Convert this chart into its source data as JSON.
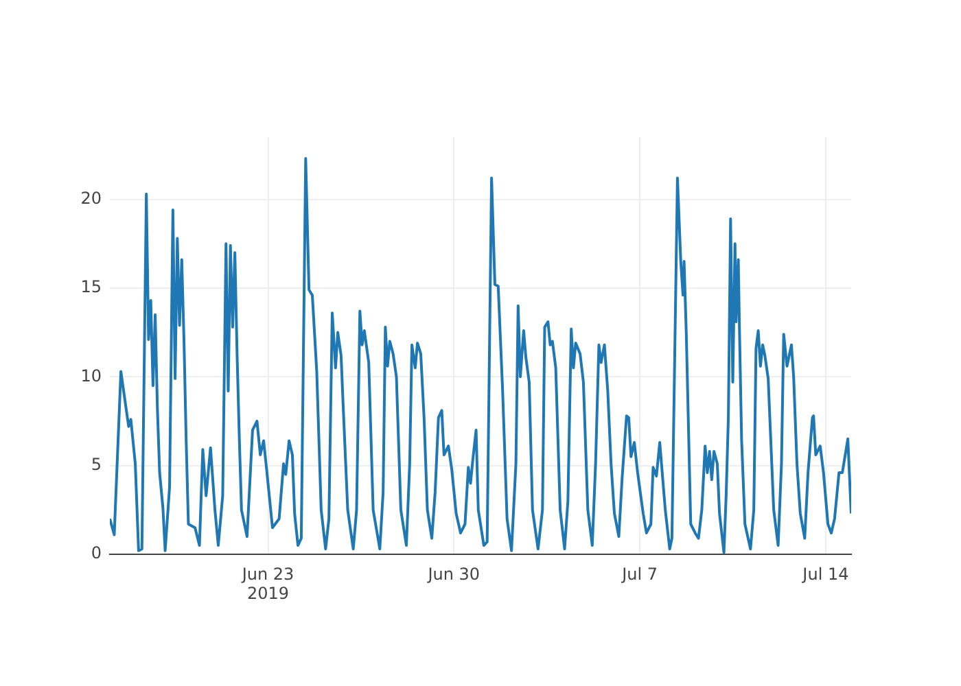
{
  "chart_data": {
    "type": "line",
    "grid": true,
    "legend": false,
    "marker": "none",
    "line_style": "solid",
    "xlim": [
      "2019-06-17T01:00",
      "2019-07-14T23:00"
    ],
    "xticks": [
      {
        "value": "2019-06-23",
        "label": "Jun 23\n2019"
      },
      {
        "value": "2019-06-30",
        "label": "Jun 30"
      },
      {
        "value": "2019-07-07",
        "label": "Jul 7"
      },
      {
        "value": "2019-07-14",
        "label": "Jul 14"
      }
    ],
    "ylim": [
      0,
      23.5
    ],
    "yticks": [
      0,
      5,
      10,
      15,
      20
    ],
    "series": [
      {
        "color": "#1f77b4",
        "x": [
          "2019-06-17T01:00",
          "2019-06-17T05:00",
          "2019-06-17T11:00",
          "2019-06-17T18:00",
          "2019-06-17T20:00",
          "2019-06-18T00:00",
          "2019-06-18T03:00",
          "2019-06-18T06:00",
          "2019-06-18T10:00",
          "2019-06-18T12:00",
          "2019-06-18T14:00",
          "2019-06-18T16:00",
          "2019-06-18T18:00",
          "2019-06-18T20:00",
          "2019-06-18T22:00",
          "2019-06-19T01:00",
          "2019-06-19T03:00",
          "2019-06-19T07:00",
          "2019-06-19T10:00",
          "2019-06-19T12:00",
          "2019-06-19T14:00",
          "2019-06-19T16:00",
          "2019-06-19T18:00",
          "2019-06-19T20:00",
          "2019-06-19T22:00",
          "2019-06-20T00:00",
          "2019-06-20T06:00",
          "2019-06-20T10:00",
          "2019-06-20T13:00",
          "2019-06-20T16:00",
          "2019-06-20T20:00",
          "2019-06-21T00:00",
          "2019-06-21T03:00",
          "2019-06-21T07:00",
          "2019-06-21T10:00",
          "2019-06-21T12:00",
          "2019-06-21T14:00",
          "2019-06-21T16:00",
          "2019-06-21T18:00",
          "2019-06-21T20:00",
          "2019-06-21T22:00",
          "2019-06-22T00:00",
          "2019-06-22T05:00",
          "2019-06-22T10:00",
          "2019-06-22T14:00",
          "2019-06-22T17:00",
          "2019-06-22T20:00",
          "2019-06-22T23:00",
          "2019-06-23T04:00",
          "2019-06-23T10:00",
          "2019-06-23T14:00",
          "2019-06-23T16:00",
          "2019-06-23T19:00",
          "2019-06-23T22:00",
          "2019-06-24T00:00",
          "2019-06-24T03:00",
          "2019-06-24T06:00",
          "2019-06-24T10:00",
          "2019-06-24T13:00",
          "2019-06-24T16:00",
          "2019-06-24T20:00",
          "2019-06-25T00:00",
          "2019-06-25T04:00",
          "2019-06-25T07:00",
          "2019-06-25T10:00",
          "2019-06-25T13:00",
          "2019-06-25T15:00",
          "2019-06-25T18:00",
          "2019-06-25T20:00",
          "2019-06-26T00:00",
          "2019-06-26T05:00",
          "2019-06-26T08:00",
          "2019-06-26T11:00",
          "2019-06-26T13:00",
          "2019-06-26T15:00",
          "2019-06-26T19:00",
          "2019-06-26T23:00",
          "2019-06-27T05:00",
          "2019-06-27T08:00",
          "2019-06-27T10:00",
          "2019-06-27T12:00",
          "2019-06-27T14:00",
          "2019-06-27T17:00",
          "2019-06-27T20:00",
          "2019-06-28T00:00",
          "2019-06-28T05:00",
          "2019-06-28T08:00",
          "2019-06-28T10:00",
          "2019-06-28T13:00",
          "2019-06-28T15:00",
          "2019-06-28T18:00",
          "2019-06-28T21:00",
          "2019-06-29T00:00",
          "2019-06-29T04:00",
          "2019-06-29T07:00",
          "2019-06-29T10:00",
          "2019-06-29T13:00",
          "2019-06-29T15:00",
          "2019-06-29T19:00",
          "2019-06-29T22:00",
          "2019-06-30T02:00",
          "2019-06-30T06:00",
          "2019-06-30T10:00",
          "2019-06-30T13:00",
          "2019-06-30T15:00",
          "2019-06-30T17:00",
          "2019-06-30T20:00",
          "2019-06-30T22:00",
          "2019-07-01T03:00",
          "2019-07-01T06:00",
          "2019-07-01T10:00",
          "2019-07-01T13:00",
          "2019-07-01T16:00",
          "2019-07-01T20:00",
          "2019-07-02T00:00",
          "2019-07-02T04:00",
          "2019-07-02T08:00",
          "2019-07-02T10:00",
          "2019-07-02T12:00",
          "2019-07-02T15:00",
          "2019-07-02T17:00",
          "2019-07-02T20:00",
          "2019-07-02T23:00",
          "2019-07-03T04:00",
          "2019-07-03T08:00",
          "2019-07-03T10:00",
          "2019-07-03T13:00",
          "2019-07-03T15:00",
          "2019-07-03T17:00",
          "2019-07-03T20:00",
          "2019-07-04T00:00",
          "2019-07-04T04:00",
          "2019-07-04T07:00",
          "2019-07-04T10:00",
          "2019-07-04T12:00",
          "2019-07-04T14:00",
          "2019-07-04T18:00",
          "2019-07-04T21:00",
          "2019-07-05T01:00",
          "2019-07-05T05:00",
          "2019-07-05T08:00",
          "2019-07-05T11:00",
          "2019-07-05T13:00",
          "2019-07-05T16:00",
          "2019-07-05T19:00",
          "2019-07-05T22:00",
          "2019-07-06T01:00",
          "2019-07-06T05:00",
          "2019-07-06T08:00",
          "2019-07-06T12:00",
          "2019-07-06T14:00",
          "2019-07-06T16:00",
          "2019-07-06T19:00",
          "2019-07-06T22:00",
          "2019-07-07T03:00",
          "2019-07-07T06:00",
          "2019-07-07T10:00",
          "2019-07-07T12:00",
          "2019-07-07T15:00",
          "2019-07-07T18:00",
          "2019-07-07T23:00",
          "2019-07-08T03:00",
          "2019-07-08T05:00",
          "2019-07-08T10:00",
          "2019-07-08T13:00",
          "2019-07-08T15:00",
          "2019-07-08T16:00",
          "2019-07-08T18:00",
          "2019-07-08T22:00",
          "2019-07-09T02:00",
          "2019-07-09T05:00",
          "2019-07-09T08:00",
          "2019-07-09T11:00",
          "2019-07-09T13:00",
          "2019-07-09T15:00",
          "2019-07-09T17:00",
          "2019-07-09T19:00",
          "2019-07-09T22:00",
          "2019-07-10T00:00",
          "2019-07-10T04:00",
          "2019-07-10T06:00",
          "2019-07-10T08:00",
          "2019-07-10T10:00",
          "2019-07-10T12:00",
          "2019-07-10T14:00",
          "2019-07-10T15:00",
          "2019-07-10T17:00",
          "2019-07-10T18:00",
          "2019-07-10T20:00",
          "2019-07-10T23:00",
          "2019-07-11T04:00",
          "2019-07-11T07:00",
          "2019-07-11T09:00",
          "2019-07-11T11:00",
          "2019-07-11T13:00",
          "2019-07-11T15:00",
          "2019-07-11T17:00",
          "2019-07-11T20:00",
          "2019-07-12T01:00",
          "2019-07-12T05:00",
          "2019-07-12T08:00",
          "2019-07-12T10:00",
          "2019-07-12T13:00",
          "2019-07-12T17:00",
          "2019-07-12T19:00",
          "2019-07-12T22:00",
          "2019-07-13T01:00",
          "2019-07-13T05:00",
          "2019-07-13T08:00",
          "2019-07-13T12:00",
          "2019-07-13T13:00",
          "2019-07-13T15:00",
          "2019-07-13T19:00",
          "2019-07-13T22:00",
          "2019-07-14T02:00",
          "2019-07-14T05:00",
          "2019-07-14T08:00",
          "2019-07-14T12:00",
          "2019-07-14T15:00",
          "2019-07-14T20:00",
          "2019-07-14T23:00"
        ],
        "values": [
          2.0,
          1.1,
          10.3,
          7.2,
          7.6,
          5.1,
          0.2,
          0.3,
          20.3,
          12.1,
          14.3,
          9.5,
          13.5,
          8.2,
          4.6,
          2.6,
          0.2,
          3.8,
          19.4,
          9.9,
          17.8,
          12.9,
          16.6,
          12.1,
          6.4,
          1.7,
          1.5,
          0.5,
          5.9,
          3.3,
          6.0,
          2.5,
          0.5,
          3.3,
          17.5,
          9.2,
          17.4,
          12.8,
          17.0,
          11.3,
          6.6,
          2.5,
          1.0,
          7.0,
          7.5,
          5.6,
          6.4,
          4.6,
          1.5,
          2.0,
          5.1,
          4.5,
          6.4,
          5.6,
          2.3,
          0.5,
          0.9,
          22.3,
          14.9,
          14.6,
          10.3,
          2.5,
          0.3,
          2.0,
          13.6,
          10.5,
          12.5,
          11.2,
          8.2,
          2.5,
          0.3,
          2.5,
          13.7,
          11.8,
          12.6,
          10.8,
          2.5,
          0.3,
          3.5,
          12.8,
          10.6,
          12.0,
          11.3,
          10.0,
          2.5,
          0.5,
          5.1,
          11.8,
          10.5,
          11.9,
          11.3,
          7.7,
          2.5,
          0.9,
          3.5,
          7.7,
          8.1,
          5.6,
          6.1,
          4.8,
          2.3,
          1.2,
          1.7,
          4.9,
          4.0,
          5.3,
          7.0,
          2.5,
          0.5,
          0.7,
          21.2,
          15.2,
          15.1,
          9.2,
          2.0,
          0.2,
          5.1,
          14.0,
          10.0,
          12.6,
          11.1,
          9.7,
          2.5,
          0.3,
          2.5,
          12.8,
          13.1,
          11.8,
          12.0,
          10.5,
          2.5,
          0.3,
          3.0,
          12.7,
          10.5,
          11.9,
          11.3,
          9.7,
          2.5,
          0.5,
          5.1,
          11.8,
          10.8,
          11.8,
          9.2,
          5.1,
          2.3,
          1.0,
          4.3,
          7.8,
          7.7,
          5.5,
          6.3,
          4.6,
          2.3,
          1.2,
          1.7,
          4.9,
          4.4,
          6.3,
          2.5,
          0.3,
          0.9,
          21.2,
          16.5,
          14.6,
          16.5,
          12.4,
          1.7,
          1.2,
          0.9,
          2.5,
          6.1,
          4.6,
          5.8,
          4.2,
          5.8,
          5.1,
          2.3,
          0.1,
          3.3,
          7.7,
          18.9,
          9.7,
          17.5,
          13.1,
          16.6,
          12.8,
          6.4,
          1.7,
          0.3,
          2.5,
          11.6,
          12.6,
          10.6,
          11.8,
          11.2,
          9.9,
          2.5,
          0.5,
          5.1,
          12.4,
          10.6,
          11.8,
          10.0,
          5.1,
          2.3,
          0.9,
          4.6,
          7.7,
          7.8,
          5.6,
          6.1,
          4.6,
          1.7,
          1.2,
          2.0,
          4.6,
          4.6,
          6.5,
          2.3
        ]
      }
    ]
  }
}
